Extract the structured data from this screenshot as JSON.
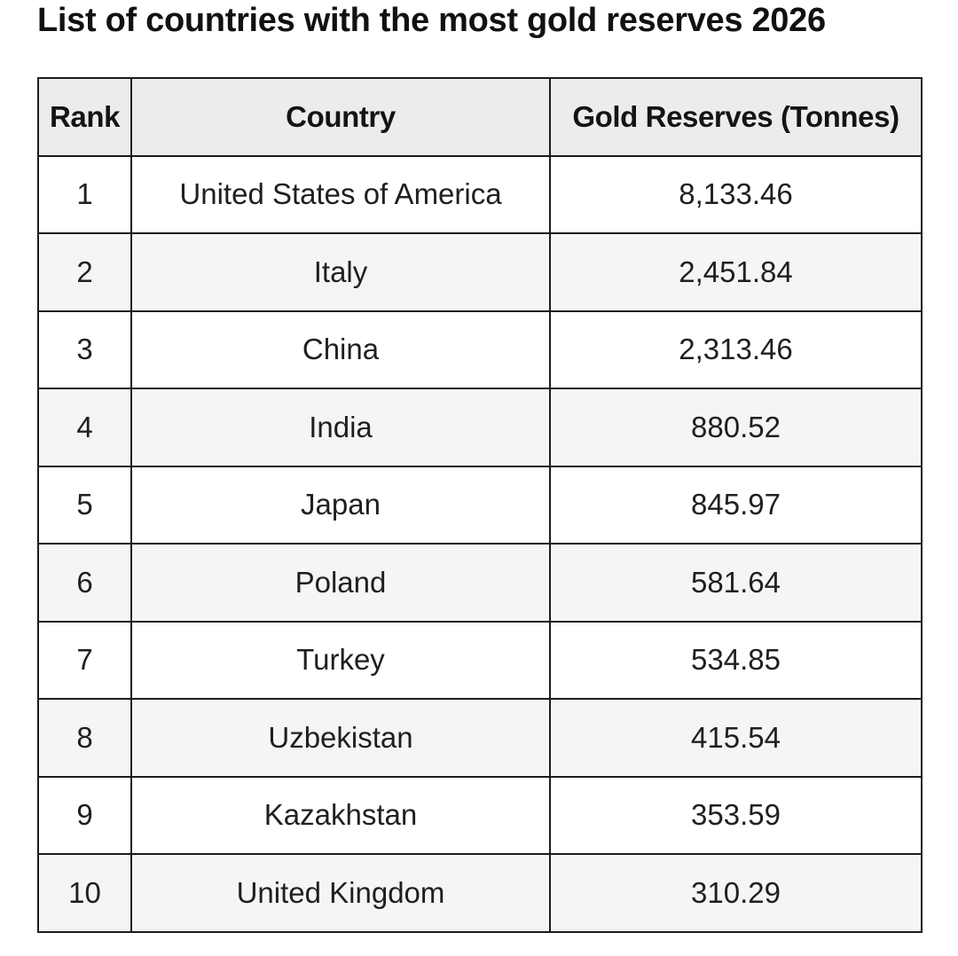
{
  "title": "List of countries with the most gold reserves 2026",
  "table": {
    "headers": {
      "rank": "Rank",
      "country": "Country",
      "gold": "Gold Reserves (Tonnes)"
    },
    "rows": [
      {
        "rank": "1",
        "country": "United States of America",
        "gold": "8,133.46"
      },
      {
        "rank": "2",
        "country": "Italy",
        "gold": "2,451.84"
      },
      {
        "rank": "3",
        "country": "China",
        "gold": "2,313.46"
      },
      {
        "rank": "4",
        "country": "India",
        "gold": "880.52"
      },
      {
        "rank": "5",
        "country": "Japan",
        "gold": "845.97"
      },
      {
        "rank": "6",
        "country": "Poland",
        "gold": "581.64"
      },
      {
        "rank": "7",
        "country": "Turkey",
        "gold": "534.85"
      },
      {
        "rank": "8",
        "country": "Uzbekistan",
        "gold": "415.54"
      },
      {
        "rank": "9",
        "country": "Kazakhstan",
        "gold": "353.59"
      },
      {
        "rank": "10",
        "country": "United Kingdom",
        "gold": "310.29"
      }
    ]
  }
}
